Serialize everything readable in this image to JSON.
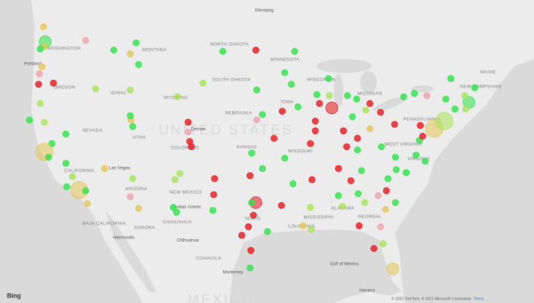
{
  "map": {
    "labels": [
      "Winnipeg",
      "WASHINGTON",
      "MONTANA",
      "NORTH DAKOTA",
      "MINNESOTA",
      "SOUTH DAKOTA",
      "WISCONSIN",
      "OREGON",
      "Portland",
      "IDAHO",
      "WYOMING",
      "IOWA",
      "NEBRASKA",
      "NEVADA",
      "UNITED STATES",
      "UTAH",
      "Denver",
      "COLORADO",
      "KANSAS",
      "MISSOURI",
      "CALIFORNIA",
      "Las Vegas",
      "ARIZONA",
      "NEW MEXICO",
      "Ciudad Juárez",
      "SONORA",
      "CHIHUAHUA",
      "Hermosillo",
      "Chihuahua",
      "BAJA CALIFORNIA",
      "TEXAS",
      "LOUISIANA",
      "MISSISSIPPI",
      "ALABAMA",
      "GEORGIA",
      "WEST VIRGINIA",
      "VIRGINIA",
      "PENNSYLVANIA",
      "MICHIGAN",
      "MAINE",
      "NEW HAMPSHIRE",
      "COAHUILA",
      "Monterrey",
      "Gulf of Mexico",
      "MEXICO",
      "Havana"
    ],
    "colors": {
      "r": "#e8161b",
      "g": "#2fe34a",
      "l": "#a9e45a",
      "y": "#e3c75a",
      "p": "#f0a3ab"
    },
    "markers": [
      [
        -122.3,
        47.6,
        "g",
        2
      ],
      [
        -122.4,
        47.2,
        "y",
        1
      ],
      [
        -122.9,
        47.0,
        "g",
        1
      ],
      [
        -122.5,
        48.8,
        "y",
        1
      ],
      [
        -117.4,
        47.7,
        "p",
        1
      ],
      [
        -122.7,
        45.5,
        "y",
        1
      ],
      [
        -123.0,
        44.9,
        "p",
        1
      ],
      [
        -123.1,
        44.0,
        "r",
        1
      ],
      [
        -122.9,
        42.3,
        "l",
        1
      ],
      [
        -121.3,
        44.1,
        "r",
        1
      ],
      [
        -116.2,
        43.6,
        "l",
        1
      ],
      [
        -114.0,
        46.9,
        "g",
        1
      ],
      [
        -112.0,
        46.6,
        "y",
        1
      ],
      [
        -111.3,
        47.5,
        "g",
        1
      ],
      [
        -111.0,
        45.7,
        "g",
        1
      ],
      [
        -112.0,
        43.5,
        "l",
        1
      ],
      [
        -106.3,
        42.9,
        "l",
        1
      ],
      [
        -111.9,
        40.8,
        "y",
        1
      ],
      [
        -111.7,
        40.2,
        "g",
        1
      ],
      [
        -112.0,
        41.2,
        "g",
        1
      ],
      [
        -105.0,
        39.7,
        "p",
        1
      ],
      [
        -104.8,
        38.8,
        "r",
        1
      ],
      [
        -104.6,
        38.3,
        "r",
        1
      ],
      [
        -105.0,
        40.6,
        "r",
        1
      ],
      [
        -106.6,
        35.1,
        "l",
        1
      ],
      [
        -106.0,
        35.7,
        "l",
        1
      ],
      [
        -106.8,
        32.3,
        "g",
        1
      ],
      [
        -106.4,
        31.8,
        "g",
        1
      ],
      [
        -112.0,
        33.4,
        "p",
        1
      ],
      [
        -111.0,
        32.2,
        "y",
        1
      ],
      [
        -111.7,
        35.2,
        "l",
        1
      ],
      [
        -115.1,
        36.2,
        "y",
        1
      ],
      [
        -119.8,
        39.5,
        "g",
        1
      ],
      [
        -121.5,
        38.6,
        "g",
        1
      ],
      [
        -122.4,
        37.8,
        "y",
        3
      ],
      [
        -121.9,
        37.3,
        "g",
        1
      ],
      [
        -119.8,
        36.7,
        "g",
        1
      ],
      [
        -119.0,
        35.4,
        "l",
        1
      ],
      [
        -118.2,
        34.05,
        "y",
        3
      ],
      [
        -117.2,
        32.7,
        "y",
        1
      ],
      [
        -117.4,
        34.0,
        "g",
        1
      ],
      [
        -119.7,
        34.4,
        "g",
        1
      ],
      [
        -122.4,
        40.6,
        "l",
        1
      ],
      [
        -124.2,
        40.8,
        "g",
        1
      ],
      [
        -96.8,
        46.9,
        "r",
        1
      ],
      [
        -100.8,
        46.8,
        "g",
        1
      ],
      [
        -96.7,
        43.5,
        "g",
        1
      ],
      [
        -103.2,
        44.1,
        "l",
        1
      ],
      [
        -93.3,
        45.0,
        "g",
        1
      ],
      [
        -92.1,
        46.8,
        "g",
        1
      ],
      [
        -92.5,
        44.0,
        "g",
        1
      ],
      [
        -96.0,
        41.3,
        "g",
        1
      ],
      [
        -96.7,
        40.8,
        "p",
        1
      ],
      [
        -93.6,
        41.6,
        "r",
        1
      ],
      [
        -91.7,
        42.0,
        "g",
        1
      ],
      [
        -89.4,
        43.1,
        "g",
        1
      ],
      [
        -87.9,
        43.0,
        "l",
        1
      ],
      [
        -88.0,
        44.5,
        "g",
        1
      ],
      [
        -87.6,
        41.9,
        "r",
        2
      ],
      [
        -89.1,
        42.3,
        "r",
        1
      ],
      [
        -89.6,
        40.7,
        "r",
        1
      ],
      [
        -89.6,
        39.8,
        "r",
        1
      ],
      [
        -86.2,
        39.8,
        "r",
        1
      ],
      [
        -85.1,
        41.1,
        "g",
        1
      ],
      [
        -83.0,
        42.3,
        "r",
        1
      ],
      [
        -85.7,
        43.0,
        "g",
        1
      ],
      [
        -84.6,
        42.7,
        "g",
        1
      ],
      [
        -81.7,
        41.5,
        "r",
        1
      ],
      [
        -83.0,
        40.0,
        "y",
        1
      ],
      [
        -84.5,
        39.1,
        "r",
        1
      ],
      [
        -83.5,
        41.7,
        "l",
        1
      ],
      [
        -80.0,
        40.4,
        "r",
        1
      ],
      [
        -85.8,
        38.3,
        "r",
        1
      ],
      [
        -84.5,
        38.0,
        "g",
        1
      ],
      [
        -86.8,
        36.2,
        "r",
        1
      ],
      [
        -90.0,
        35.1,
        "r",
        1
      ],
      [
        -84.0,
        36.0,
        "g",
        1
      ],
      [
        -85.3,
        35.0,
        "r",
        1
      ],
      [
        -84.4,
        33.7,
        "g",
        1
      ],
      [
        -86.8,
        33.5,
        "g",
        1
      ],
      [
        -86.3,
        32.4,
        "l",
        1
      ],
      [
        -90.2,
        32.3,
        "l",
        1
      ],
      [
        -90.1,
        30.0,
        "l",
        1
      ],
      [
        -91.1,
        30.4,
        "y",
        1
      ],
      [
        -93.7,
        32.5,
        "r",
        1
      ],
      [
        -92.3,
        34.7,
        "g",
        1
      ],
      [
        -96.0,
        36.2,
        "g",
        1
      ],
      [
        -97.5,
        35.5,
        "r",
        1
      ],
      [
        -97.3,
        37.7,
        "g",
        1
      ],
      [
        -94.6,
        39.1,
        "r",
        1
      ],
      [
        -90.2,
        38.6,
        "r",
        1
      ],
      [
        -93.3,
        37.2,
        "g",
        1
      ],
      [
        -96.8,
        32.8,
        "r",
        2
      ],
      [
        -97.3,
        32.8,
        "g",
        1
      ],
      [
        -97.7,
        30.3,
        "r",
        1
      ],
      [
        -98.5,
        29.4,
        "r",
        1
      ],
      [
        -95.4,
        29.8,
        "g",
        1
      ],
      [
        -97.4,
        27.8,
        "r",
        1
      ],
      [
        -97.5,
        25.9,
        "g",
        1
      ],
      [
        -101.9,
        33.6,
        "r",
        1
      ],
      [
        -101.8,
        35.2,
        "r",
        1
      ],
      [
        -102.0,
        32.0,
        "g",
        1
      ],
      [
        -97.1,
        31.5,
        "r",
        1
      ],
      [
        -81.7,
        30.3,
        "p",
        1
      ],
      [
        -82.5,
        28.0,
        "r",
        1
      ],
      [
        -81.4,
        28.5,
        "l",
        1
      ],
      [
        -80.2,
        25.8,
        "y",
        2
      ],
      [
        -84.3,
        30.4,
        "r",
        1
      ],
      [
        -81.1,
        32.1,
        "y",
        1
      ],
      [
        -79.9,
        32.8,
        "g",
        1
      ],
      [
        -81.0,
        34.0,
        "r",
        1
      ],
      [
        -80.8,
        35.2,
        "g",
        1
      ],
      [
        -78.6,
        35.8,
        "g",
        1
      ],
      [
        -79.8,
        36.1,
        "g",
        1
      ],
      [
        -77.4,
        37.5,
        "g",
        1
      ],
      [
        -76.3,
        36.9,
        "g",
        1
      ],
      [
        -77.0,
        38.9,
        "g",
        1
      ],
      [
        -76.6,
        39.3,
        "r",
        1
      ],
      [
        -75.2,
        40.0,
        "y",
        3
      ],
      [
        -74.0,
        40.7,
        "l",
        3
      ],
      [
        -71.0,
        42.4,
        "g",
        2
      ],
      [
        -71.4,
        41.8,
        "l",
        1
      ],
      [
        -72.7,
        41.8,
        "g",
        1
      ],
      [
        -73.8,
        42.7,
        "g",
        1
      ],
      [
        -76.1,
        43.0,
        "p",
        1
      ],
      [
        -78.9,
        42.9,
        "g",
        1
      ],
      [
        -77.6,
        43.2,
        "g",
        1
      ],
      [
        -70.3,
        43.7,
        "g",
        1
      ],
      [
        -73.2,
        44.5,
        "g",
        1
      ],
      [
        -71.5,
        43.0,
        "l",
        1
      ],
      [
        -76.9,
        40.3,
        "r",
        1
      ],
      [
        -79.9,
        37.3,
        "g",
        1
      ],
      [
        -81.6,
        38.3,
        "g",
        1
      ],
      [
        -82.0,
        33.5,
        "p",
        1
      ],
      [
        -83.6,
        32.8,
        "l",
        1
      ]
    ],
    "attribution": "© 2021 TomTom, © 2021 Microsoft Corporation",
    "terms": "Terms",
    "logo": "Bing"
  }
}
